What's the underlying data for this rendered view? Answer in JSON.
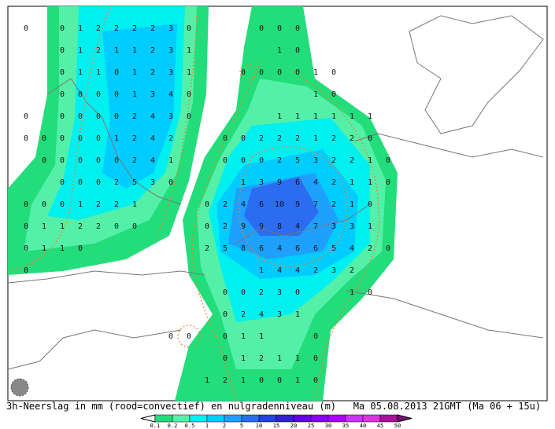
{
  "caption": "3h-Neerslag in mm (rood=convectief) en nulgradenniveau (m)   Ma 05.08.2013 21GMT (Ma 06 + 15u)",
  "grid": {
    "rows": [
      [
        0,
        null,
        0,
        1,
        2,
        2,
        2,
        2,
        3,
        0,
        null,
        null,
        null,
        0,
        0,
        0,
        null,
        null,
        null,
        null,
        null
      ],
      [
        null,
        null,
        0,
        1,
        2,
        1,
        1,
        2,
        3,
        1,
        null,
        null,
        null,
        null,
        1,
        0,
        null,
        null,
        null,
        null,
        null
      ],
      [
        null,
        null,
        0,
        1,
        1,
        0,
        1,
        2,
        3,
        1,
        null,
        null,
        0,
        0,
        0,
        0,
        1,
        0,
        null,
        null,
        null
      ],
      [
        null,
        null,
        0,
        0,
        0,
        0,
        1,
        3,
        4,
        0,
        null,
        null,
        null,
        null,
        null,
        null,
        1,
        0,
        null,
        null,
        null
      ],
      [
        0,
        null,
        0,
        0,
        0,
        0,
        2,
        4,
        3,
        0,
        null,
        null,
        null,
        null,
        1,
        1,
        1,
        1,
        1,
        1,
        null
      ],
      [
        0,
        0,
        0,
        0,
        0,
        1,
        2,
        4,
        2,
        null,
        null,
        0,
        0,
        2,
        2,
        2,
        1,
        2,
        2,
        0,
        null
      ],
      [
        null,
        0,
        0,
        0,
        0,
        0,
        2,
        4,
        1,
        null,
        null,
        0,
        0,
        0,
        2,
        5,
        3,
        2,
        2,
        1,
        0
      ],
      [
        null,
        null,
        0,
        0,
        0,
        2,
        5,
        3,
        0,
        null,
        null,
        null,
        1,
        3,
        9,
        6,
        4,
        2,
        1,
        1,
        0
      ],
      [
        0,
        0,
        0,
        1,
        2,
        2,
        1,
        null,
        null,
        null,
        0,
        2,
        4,
        6,
        10,
        9,
        7,
        2,
        1,
        0,
        null
      ],
      [
        0,
        1,
        1,
        2,
        2,
        0,
        0,
        null,
        null,
        null,
        0,
        2,
        9,
        9,
        8,
        4,
        7,
        3,
        3,
        1,
        null
      ],
      [
        0,
        1,
        1,
        0,
        null,
        null,
        null,
        null,
        null,
        null,
        2,
        5,
        8,
        6,
        4,
        6,
        6,
        5,
        4,
        2,
        0
      ],
      [
        0,
        null,
        null,
        null,
        null,
        null,
        null,
        null,
        null,
        null,
        null,
        null,
        null,
        1,
        4,
        4,
        2,
        3,
        2,
        null,
        null
      ],
      [
        null,
        null,
        null,
        null,
        null,
        null,
        null,
        null,
        null,
        null,
        null,
        0,
        0,
        2,
        3,
        0,
        null,
        null,
        1,
        0,
        null
      ],
      [
        null,
        null,
        null,
        null,
        null,
        null,
        null,
        null,
        null,
        null,
        null,
        0,
        2,
        4,
        3,
        1,
        null,
        null,
        null,
        null,
        null
      ],
      [
        null,
        null,
        null,
        null,
        null,
        null,
        null,
        null,
        0,
        0,
        null,
        0,
        1,
        1,
        null,
        null,
        0,
        null,
        null,
        null,
        null
      ],
      [
        null,
        null,
        null,
        null,
        null,
        null,
        null,
        null,
        null,
        null,
        null,
        0,
        1,
        2,
        1,
        1,
        0,
        null,
        null,
        null,
        null
      ],
      [
        null,
        null,
        null,
        null,
        null,
        null,
        null,
        null,
        null,
        null,
        1,
        2,
        1,
        0,
        0,
        1,
        0,
        null,
        null,
        null,
        null
      ]
    ]
  },
  "legend": {
    "ticks": [
      0.1,
      0.2,
      0.5,
      1,
      2,
      5,
      10,
      15,
      20,
      25,
      30,
      35,
      40,
      45,
      50
    ],
    "colors": [
      "#22dd7a",
      "#55f0a8",
      "#00f0f0",
      "#00ccff",
      "#1ea0ff",
      "#2c6cf0",
      "#2244dd",
      "#3322cc",
      "#6600dd",
      "#8800ee",
      "#aa00ff",
      "#cc33ff",
      "#dd33dd",
      "#aa1199",
      "#771177"
    ]
  }
}
